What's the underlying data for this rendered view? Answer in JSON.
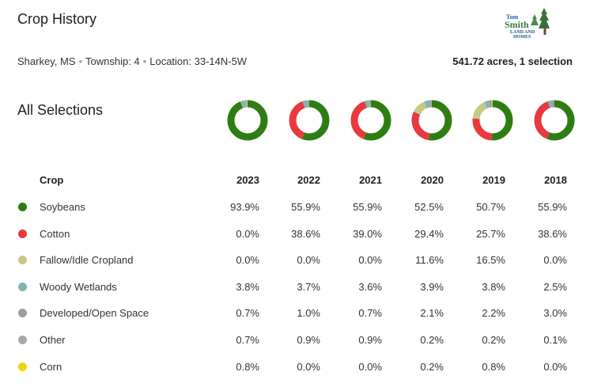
{
  "header": {
    "title": "Crop History",
    "logo_alt": "Tom Smith Land and Homes",
    "logo_text": [
      "Tom",
      "Smith",
      "LAND AND",
      "HOMES"
    ]
  },
  "location": {
    "county": "Sharkey, MS",
    "township": "Township: 4",
    "loc": "Location: 33-14N-5W",
    "acres_summary": "541.72 acres, 1 selection"
  },
  "section": {
    "title": "All Selections"
  },
  "table": {
    "crop_header": "Crop",
    "years": [
      "2023",
      "2022",
      "2021",
      "2020",
      "2019",
      "2018"
    ],
    "rows": [
      {
        "name": "Soybeans",
        "color": "#2e7d12",
        "values": [
          "93.9%",
          "55.9%",
          "55.9%",
          "52.5%",
          "50.7%",
          "55.9%"
        ]
      },
      {
        "name": "Cotton",
        "color": "#e8393f",
        "values": [
          "0.0%",
          "38.6%",
          "39.0%",
          "29.4%",
          "25.7%",
          "38.6%"
        ]
      },
      {
        "name": "Fallow/Idle Cropland",
        "color": "#c8c886",
        "values": [
          "0.0%",
          "0.0%",
          "0.0%",
          "11.6%",
          "16.5%",
          "0.0%"
        ]
      },
      {
        "name": "Woody Wetlands",
        "color": "#7fb6b0",
        "values": [
          "3.8%",
          "3.7%",
          "3.6%",
          "3.9%",
          "3.8%",
          "2.5%"
        ]
      },
      {
        "name": "Developed/Open Space",
        "color": "#9e9e9e",
        "values": [
          "0.7%",
          "1.0%",
          "0.7%",
          "2.1%",
          "2.2%",
          "3.0%"
        ]
      },
      {
        "name": "Other",
        "color": "#a8a8a8",
        "values": [
          "0.7%",
          "0.9%",
          "0.9%",
          "0.2%",
          "0.2%",
          "0.1%"
        ]
      },
      {
        "name": "Corn",
        "color": "#f2d600",
        "values": [
          "0.8%",
          "0.0%",
          "0.0%",
          "0.2%",
          "0.8%",
          "0.0%"
        ]
      }
    ]
  }
}
